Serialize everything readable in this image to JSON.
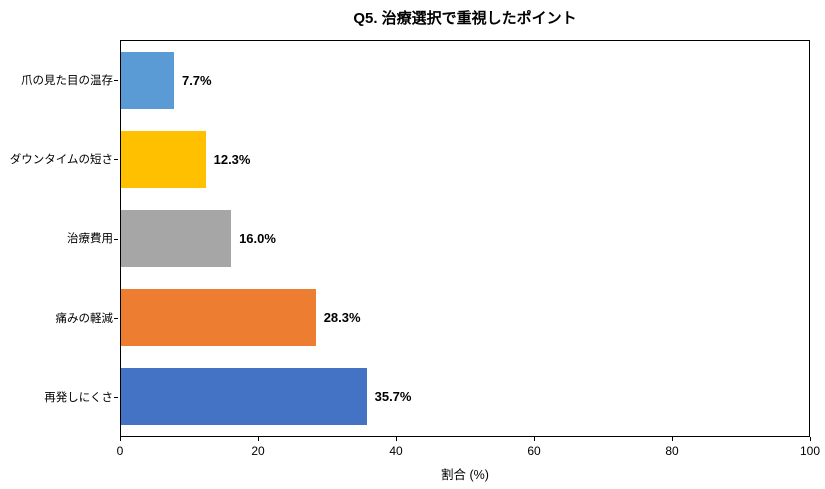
{
  "chart_data": {
    "type": "bar",
    "orientation": "horizontal",
    "title": "Q5. 治療選択で重視したポイント",
    "xlabel": "割合 (%)",
    "ylabel": "",
    "xlim": [
      0,
      100
    ],
    "xticks": [
      0,
      20,
      40,
      60,
      80,
      100
    ],
    "grid": false,
    "legend": "none",
    "categories": [
      "爪の見た目の温存",
      "ダウンタイムの短さ",
      "治療費用",
      "痛みの軽減",
      "再発しにくさ"
    ],
    "values": [
      7.7,
      12.3,
      16.0,
      28.3,
      35.7
    ],
    "value_labels": [
      "7.7%",
      "12.3%",
      "16.0%",
      "28.3%",
      "35.7%"
    ],
    "bar_colors": [
      "#5B9BD5",
      "#FFC000",
      "#A6A6A6",
      "#ED7D31",
      "#4472C4"
    ],
    "plot_border_color": "#000000",
    "background_color": "#ffffff"
  }
}
